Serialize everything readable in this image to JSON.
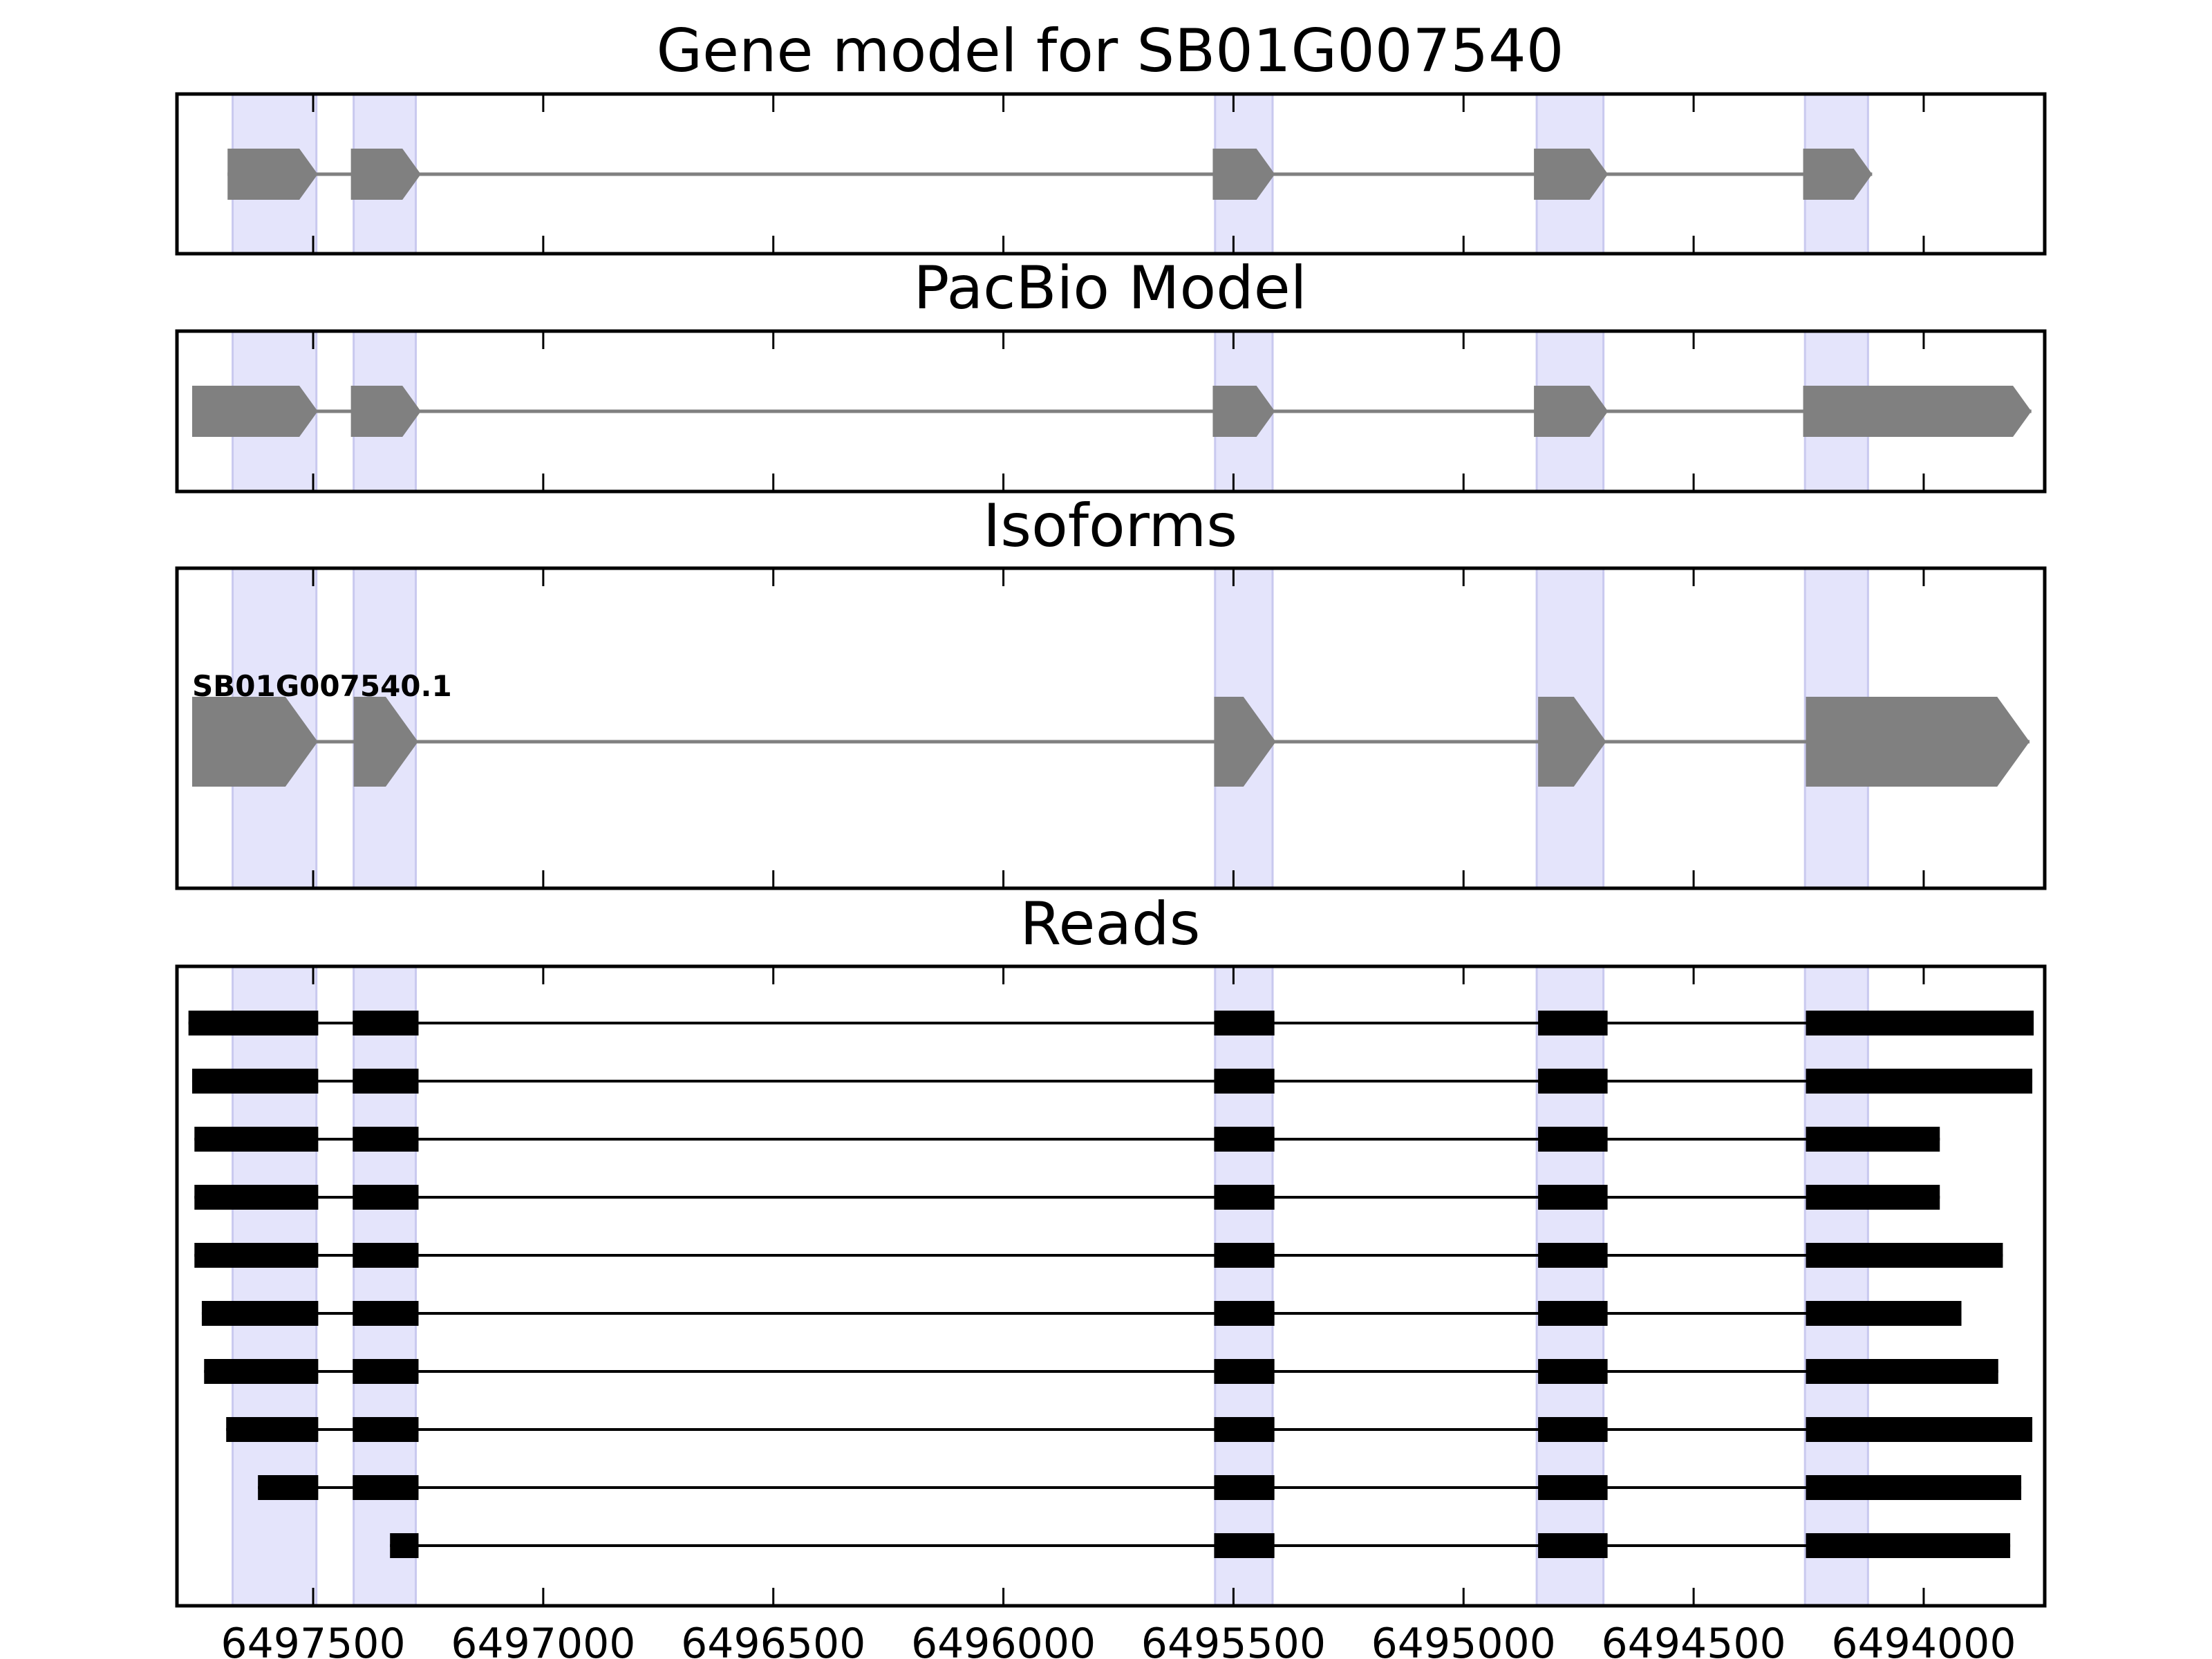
{
  "colors": {
    "exon_highlight": "#e4e4fb",
    "exon_highlight_edge": "#c9c9ef",
    "model_fill": "#808080",
    "model_line": "#808080",
    "read_fill": "#000000",
    "frame": "#000000"
  },
  "axis": {
    "reversed": true,
    "xlim": [
      6497796,
      6493737
    ],
    "major_ticks": [
      6497500,
      6497000,
      6496500,
      6496000,
      6495500,
      6495000,
      6494500,
      6494000
    ],
    "tick_labels": [
      "6497500",
      "6497000",
      "6496500",
      "6496000",
      "6495500",
      "6495000",
      "6494500",
      "6494000"
    ]
  },
  "highlights": [
    [
      6497675,
      6497493
    ],
    [
      6497412,
      6497277
    ],
    [
      6495540,
      6495415
    ],
    [
      6494841,
      6494696
    ],
    [
      6494258,
      6494121
    ]
  ],
  "chart_data": {
    "type": "gene-structure",
    "panels": [
      {
        "id": "gene-model",
        "title": "Gene model for SB01G007540",
        "label": "",
        "strand": "-",
        "exons": [
          [
            6497686,
            6497490
          ],
          [
            6497418,
            6497266
          ],
          [
            6495545,
            6495410
          ],
          [
            6494847,
            6494686
          ],
          [
            6494262,
            6494112
          ]
        ]
      },
      {
        "id": "pacbio-model",
        "title": "PacBio Model",
        "label": "",
        "strand": "-",
        "exons": [
          [
            6497763,
            6497490
          ],
          [
            6497418,
            6497266
          ],
          [
            6495545,
            6495410
          ],
          [
            6494847,
            6494686
          ],
          [
            6494262,
            6493766
          ]
        ]
      },
      {
        "id": "isoforms",
        "title": "Isoforms",
        "label": "SB01G007540.1",
        "strand": "-",
        "exons": [
          [
            6497763,
            6497490
          ],
          [
            6497412,
            6497272
          ],
          [
            6495542,
            6495408
          ],
          [
            6494838,
            6494690
          ],
          [
            6494256,
            6493770
          ]
        ]
      }
    ],
    "reads": {
      "title": "Reads",
      "rows": [
        [
          [
            6497771,
            6497489
          ],
          [
            6497414,
            6497271
          ],
          [
            6495542,
            6495411
          ],
          [
            6494838,
            6494687
          ],
          [
            6494256,
            6493761
          ]
        ],
        [
          [
            6497763,
            6497489
          ],
          [
            6497414,
            6497271
          ],
          [
            6495542,
            6495411
          ],
          [
            6494838,
            6494687
          ],
          [
            6494256,
            6493764
          ]
        ],
        [
          [
            6497758,
            6497489
          ],
          [
            6497414,
            6497271
          ],
          [
            6495542,
            6495411
          ],
          [
            6494838,
            6494687
          ],
          [
            6494256,
            6493965
          ]
        ],
        [
          [
            6497758,
            6497489
          ],
          [
            6497414,
            6497271
          ],
          [
            6495542,
            6495411
          ],
          [
            6494838,
            6494687
          ],
          [
            6494256,
            6493965
          ]
        ],
        [
          [
            6497758,
            6497489
          ],
          [
            6497414,
            6497271
          ],
          [
            6495542,
            6495411
          ],
          [
            6494838,
            6494687
          ],
          [
            6494256,
            6493828
          ]
        ],
        [
          [
            6497742,
            6497489
          ],
          [
            6497414,
            6497271
          ],
          [
            6495542,
            6495411
          ],
          [
            6494838,
            6494687
          ],
          [
            6494256,
            6493918
          ]
        ],
        [
          [
            6497737,
            6497489
          ],
          [
            6497414,
            6497271
          ],
          [
            6495542,
            6495411
          ],
          [
            6494838,
            6494687
          ],
          [
            6494256,
            6493838
          ]
        ],
        [
          [
            6497689,
            6497489
          ],
          [
            6497414,
            6497271
          ],
          [
            6495542,
            6495411
          ],
          [
            6494838,
            6494687
          ],
          [
            6494256,
            6493764
          ]
        ],
        [
          [
            6497620,
            6497489
          ],
          [
            6497414,
            6497271
          ],
          [
            6495542,
            6495411
          ],
          [
            6494838,
            6494687
          ],
          [
            6494256,
            6493788
          ]
        ],
        [
          [
            6497333,
            6497271
          ],
          [
            6495542,
            6495411
          ],
          [
            6494838,
            6494687
          ],
          [
            6494256,
            6493812
          ]
        ]
      ]
    }
  }
}
